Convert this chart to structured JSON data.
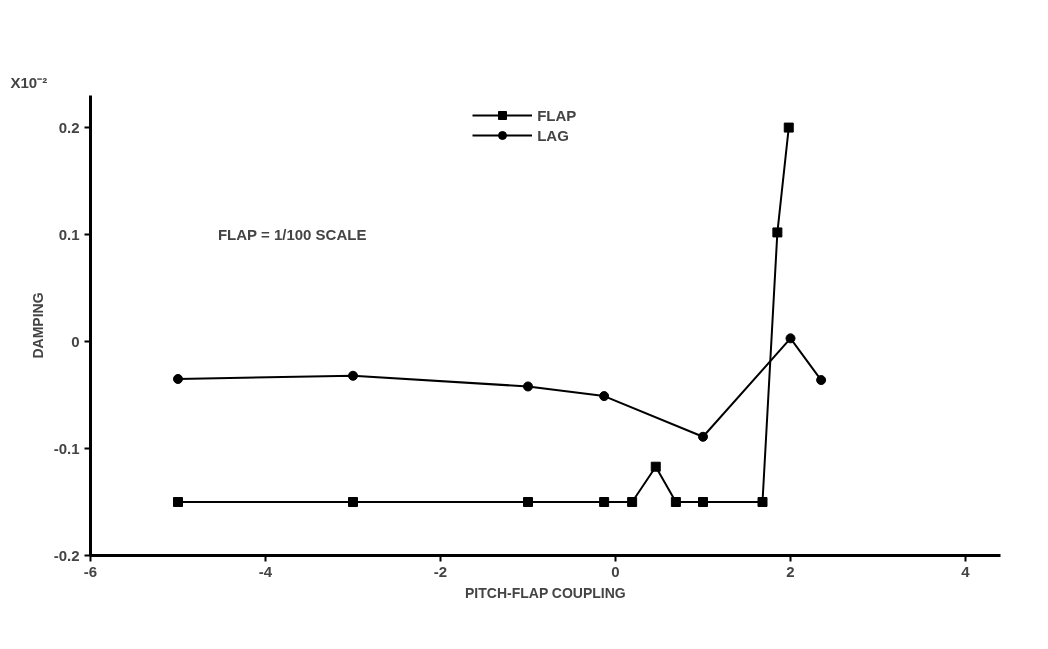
{
  "chart_data": {
    "type": "line",
    "xlabel": "PITCH-FLAP COUPLING",
    "ylabel": "DAMPING",
    "xlim": [
      -6,
      4.4
    ],
    "xticks": [
      -6,
      -4,
      -2,
      0,
      2,
      4
    ],
    "ylim": [
      -0.2,
      0.23
    ],
    "yticks": [
      -0.2,
      -0.1,
      0,
      0.1,
      0.2
    ],
    "grid": false,
    "legend": "top",
    "line_style": "solid",
    "annotations": [
      "X10⁻²",
      "FLAP = 1/100 SCALE"
    ],
    "series": [
      {
        "name": "FLAP",
        "color": "#000000",
        "marker": "square",
        "x": [
          -5,
          -3,
          -1,
          -0.13,
          0.19,
          0.46,
          0.69,
          1.0,
          1.68,
          1.85,
          1.98
        ],
        "values": [
          -0.15,
          -0.15,
          -0.15,
          -0.15,
          -0.15,
          -0.117,
          -0.15,
          -0.15,
          -0.15,
          0.102,
          0.2
        ]
      },
      {
        "name": "LAG",
        "color": "#000000",
        "marker": "circle",
        "x": [
          -5,
          -3,
          -1,
          -0.13,
          1.0,
          2.0,
          2.35
        ],
        "values": [
          -0.035,
          -0.032,
          -0.042,
          -0.051,
          -0.089,
          0.003,
          -0.036
        ]
      }
    ]
  }
}
